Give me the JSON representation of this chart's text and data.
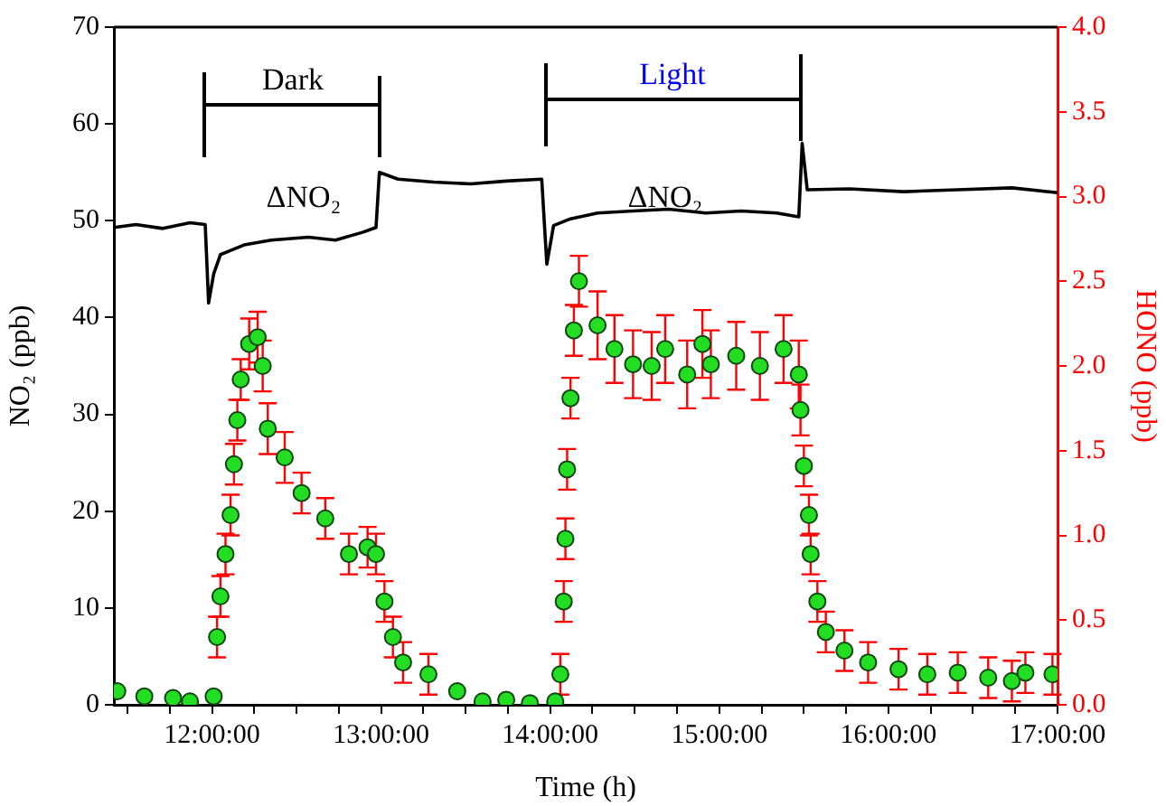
{
  "chart_data": {
    "type": "line",
    "xlabel": "Time (h)",
    "ylabel": "NO₂ (ppb)",
    "y2label": "HONO (ppb)",
    "xlim": [
      11.42,
      17
    ],
    "xticks": [
      {
        "value": 11.5,
        "label": null
      },
      {
        "value": 11.75,
        "label": null
      },
      {
        "value": 12,
        "label": "12:00:00"
      },
      {
        "value": 12.25,
        "label": null
      },
      {
        "value": 12.5,
        "label": null
      },
      {
        "value": 12.75,
        "label": null
      },
      {
        "value": 13,
        "label": "13:00:00"
      },
      {
        "value": 13.25,
        "label": null
      },
      {
        "value": 13.5,
        "label": null
      },
      {
        "value": 13.75,
        "label": null
      },
      {
        "value": 14,
        "label": "14:00:00"
      },
      {
        "value": 14.25,
        "label": null
      },
      {
        "value": 14.5,
        "label": null
      },
      {
        "value": 14.75,
        "label": null
      },
      {
        "value": 15,
        "label": "15:00:00"
      },
      {
        "value": 15.25,
        "label": null
      },
      {
        "value": 15.5,
        "label": null
      },
      {
        "value": 15.75,
        "label": null
      },
      {
        "value": 16,
        "label": "16:00:00"
      },
      {
        "value": 16.25,
        "label": null
      },
      {
        "value": 16.5,
        "label": null
      },
      {
        "value": 16.75,
        "label": null
      },
      {
        "value": 17,
        "label": "17:00:00"
      }
    ],
    "ylim": [
      0,
      70
    ],
    "yticks": [
      0,
      10,
      20,
      30,
      40,
      50,
      60,
      70
    ],
    "y2lim": [
      0,
      4
    ],
    "y2ticks": [
      {
        "value": 0,
        "label": "0.0"
      },
      {
        "value": 0.5,
        "label": "0.5"
      },
      {
        "value": 1,
        "label": "1.0"
      },
      {
        "value": 1.5,
        "label": "1.5"
      },
      {
        "value": 2,
        "label": "2.0"
      },
      {
        "value": 2.5,
        "label": "2.5"
      },
      {
        "value": 3,
        "label": "3.0"
      },
      {
        "value": 3.5,
        "label": "3.5"
      },
      {
        "value": 4,
        "label": "4.0"
      }
    ],
    "grid": false,
    "legend": false,
    "series": [
      {
        "color": "#000000",
        "marker": "none",
        "line_style": "solid",
        "x": [
          11.42,
          11.55,
          11.71,
          11.87,
          11.96,
          11.98,
          12.01,
          12.05,
          12.19,
          12.35,
          12.57,
          12.73,
          12.89,
          12.97,
          12.99,
          13.1,
          13.31,
          13.53,
          13.74,
          13.95,
          13.98,
          14.02,
          14.12,
          14.28,
          14.49,
          14.7,
          14.92,
          15.13,
          15.34,
          15.47,
          15.49,
          15.52,
          15.77,
          16.09,
          16.41,
          16.73,
          17
        ],
        "values": [
          49.3,
          49.6,
          49.2,
          49.8,
          49.6,
          41.5,
          44.5,
          46.5,
          47.5,
          48,
          48.3,
          48,
          48.8,
          49.3,
          55,
          54.3,
          54,
          53.8,
          54.1,
          54.3,
          45.5,
          49.5,
          50.2,
          50.8,
          51,
          51.2,
          50.8,
          51,
          50.8,
          50.4,
          58,
          53.2,
          53.3,
          53,
          53.2,
          53.4,
          52.9
        ]
      },
      {
        "type": "scatter",
        "axis": "y2",
        "color": "#22dd22",
        "marker": "circle",
        "x": [
          11.44,
          11.6,
          11.77,
          11.87,
          12.01,
          12.03,
          12.05,
          12.08,
          12.11,
          12.13,
          12.15,
          12.17,
          12.22,
          12.27,
          12.3,
          12.33,
          12.43,
          12.53,
          12.67,
          12.81,
          12.92,
          12.97,
          13.02,
          13.07,
          13.13,
          13.28,
          13.45,
          13.6,
          13.74,
          13.88,
          14.03,
          14.06,
          14.08,
          14.09,
          14.1,
          14.12,
          14.14,
          14.17,
          14.28,
          14.38,
          14.49,
          14.6,
          14.68,
          14.81,
          14.9,
          14.95,
          15.1,
          15.24,
          15.38,
          15.47,
          15.48,
          15.5,
          15.53,
          15.54,
          15.58,
          15.63,
          15.74,
          15.88,
          16.06,
          16.23,
          16.41,
          16.59,
          16.73,
          16.81,
          16.97
        ],
        "values": [
          0.08,
          0.05,
          0.04,
          0.02,
          0.05,
          0.4,
          0.64,
          0.89,
          1.12,
          1.42,
          1.68,
          1.92,
          2.13,
          2.17,
          2,
          1.63,
          1.46,
          1.25,
          1.1,
          0.89,
          0.93,
          0.89,
          0.61,
          0.4,
          0.25,
          0.18,
          0.08,
          0.02,
          0.03,
          0.01,
          0.02,
          0.18,
          0.61,
          0.98,
          1.39,
          1.81,
          2.21,
          2.5,
          2.24,
          2.1,
          2.01,
          2,
          2.1,
          1.95,
          2.13,
          2.01,
          2.06,
          2,
          2.1,
          1.95,
          1.74,
          1.41,
          1.12,
          0.89,
          0.61,
          0.43,
          0.32,
          0.25,
          0.21,
          0.18,
          0.19,
          0.16,
          0.14,
          0.19,
          0.18
        ],
        "errors": [
          null,
          null,
          null,
          null,
          null,
          0.12,
          0.12,
          0.12,
          0.12,
          0.12,
          0.12,
          0.12,
          0.15,
          0.15,
          0.15,
          0.15,
          0.15,
          0.12,
          0.12,
          0.12,
          0.12,
          0.12,
          0.12,
          0.12,
          0.12,
          0.12,
          null,
          null,
          null,
          null,
          null,
          0.12,
          0.12,
          0.12,
          0.12,
          0.12,
          0.15,
          0.15,
          0.2,
          0.2,
          0.2,
          0.2,
          0.2,
          0.2,
          0.2,
          0.2,
          0.2,
          0.2,
          0.2,
          0.2,
          0.15,
          0.12,
          0.12,
          0.12,
          0.12,
          0.12,
          0.12,
          0.12,
          0.12,
          0.12,
          0.12,
          0.12,
          0.12,
          0.12,
          0.12
        ]
      }
    ],
    "annotations": [
      "Dark",
      "Light",
      "ΔNO₂",
      "ΔNO₂"
    ]
  }
}
